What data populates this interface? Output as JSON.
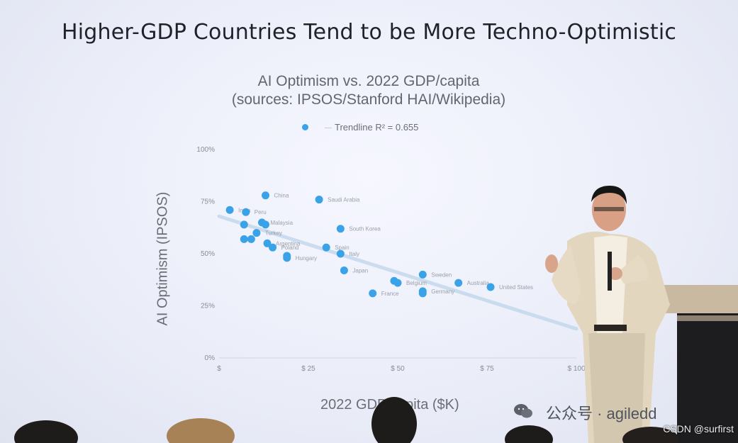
{
  "slide": {
    "title": "Higher-GDP Countries Tend to be More Techno-Optimistic"
  },
  "chart_data": {
    "type": "scatter",
    "title": "AI Optimism vs. 2022 GDP/capita",
    "subtitle": "(sources: IPSOS/Stanford HAI/Wikipedia)",
    "xlabel": "2022 GDP/capita ($K)",
    "ylabel": "AI Optimism (IPSOS)",
    "legend": {
      "marker": "",
      "trendline_label": "Trendline R² = 0.655",
      "placement": "top"
    },
    "x_ticks": [
      "$",
      "$ 25",
      "$ 50",
      "$ 75",
      "$ 100"
    ],
    "y_ticks": [
      "0%",
      "25%",
      "50%",
      "75%",
      "100%"
    ],
    "xlim": [
      0,
      100
    ],
    "ylim": [
      0,
      100
    ],
    "grid": false,
    "trendline": {
      "x": [
        0,
        100
      ],
      "y": [
        68,
        14
      ]
    },
    "points": [
      {
        "label": "China",
        "x": 13,
        "y": 78
      },
      {
        "label": "Saudi Arabia",
        "x": 28,
        "y": 76
      },
      {
        "label": "India",
        "x": 3,
        "y": 71
      },
      {
        "label": "Peru",
        "x": 7.5,
        "y": 70
      },
      {
        "label": "Malaysia",
        "x": 12,
        "y": 65
      },
      {
        "label": "",
        "x": 7,
        "y": 64
      },
      {
        "label": "",
        "x": 13,
        "y": 64
      },
      {
        "label": "South Korea",
        "x": 34,
        "y": 62
      },
      {
        "label": "Turkey",
        "x": 10.5,
        "y": 60
      },
      {
        "label": "",
        "x": 7,
        "y": 57
      },
      {
        "label": "",
        "x": 9,
        "y": 57
      },
      {
        "label": "Argentina",
        "x": 13.5,
        "y": 55
      },
      {
        "label": "Poland",
        "x": 15,
        "y": 53
      },
      {
        "label": "Spain",
        "x": 30,
        "y": 53
      },
      {
        "label": "Italy",
        "x": 34,
        "y": 50
      },
      {
        "label": "Hungary",
        "x": 19,
        "y": 48
      },
      {
        "label": "",
        "x": 19,
        "y": 49
      },
      {
        "label": "Japan",
        "x": 35,
        "y": 42
      },
      {
        "label": "Sweden",
        "x": 57,
        "y": 40
      },
      {
        "label": "",
        "x": 49,
        "y": 37
      },
      {
        "label": "Belgium",
        "x": 50,
        "y": 36
      },
      {
        "label": "Australia",
        "x": 67,
        "y": 36
      },
      {
        "label": "United States",
        "x": 76,
        "y": 34
      },
      {
        "label": "Germany",
        "x": 57,
        "y": 32
      },
      {
        "label": "",
        "x": 57,
        "y": 31
      },
      {
        "label": "France",
        "x": 43,
        "y": 31
      }
    ]
  },
  "watermark": {
    "text": "公众号 · agiledd"
  },
  "credit": {
    "text": "CSDN @surfirst"
  }
}
